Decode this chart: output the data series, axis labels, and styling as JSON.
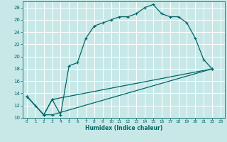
{
  "xlabel": "Humidex (Indice chaleur)",
  "bg_color": "#c8e8e8",
  "grid_color": "#ffffff",
  "line_color": "#006666",
  "xlim": [
    -0.5,
    23.5
  ],
  "ylim": [
    10,
    29
  ],
  "xticks": [
    0,
    1,
    2,
    3,
    4,
    5,
    6,
    7,
    8,
    9,
    10,
    11,
    12,
    13,
    14,
    15,
    16,
    17,
    18,
    19,
    20,
    21,
    22,
    23
  ],
  "yticks": [
    10,
    12,
    14,
    16,
    18,
    20,
    22,
    24,
    26,
    28
  ],
  "line1_x": [
    0,
    1,
    2,
    3,
    4,
    5,
    6,
    7,
    8,
    9,
    10,
    11,
    12,
    13,
    14,
    15,
    16,
    17,
    18,
    19,
    20,
    21,
    22
  ],
  "line1_y": [
    13.5,
    12,
    10.5,
    13,
    10.5,
    18.5,
    19,
    23,
    25,
    25.5,
    26,
    26.5,
    26.5,
    27,
    28,
    28.5,
    27,
    26.5,
    26.5,
    25.5,
    23,
    19.5,
    18
  ],
  "line2_x": [
    0,
    2,
    3,
    22
  ],
  "line2_y": [
    13.5,
    10.5,
    13,
    18
  ],
  "line3_x": [
    0,
    2,
    3,
    22
  ],
  "line3_y": [
    13.5,
    10.5,
    10.5,
    18
  ]
}
